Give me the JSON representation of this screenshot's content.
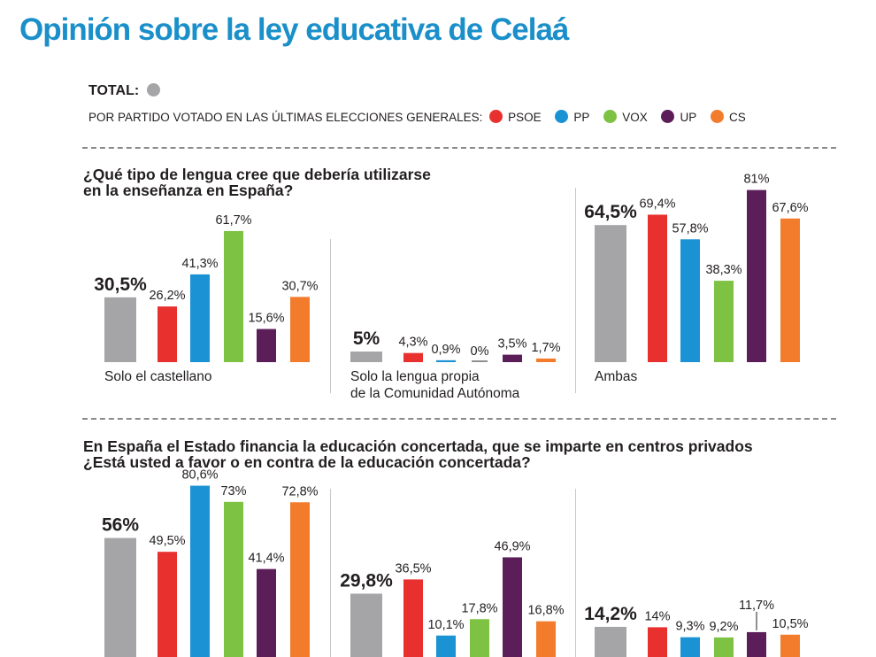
{
  "title": "Opinión sobre la ley educativa de Celaá",
  "legend": {
    "total_label": "TOTAL:",
    "party_intro": "POR PARTIDO VOTADO EN LAS ÚLTIMAS ELECCIONES GENERALES:",
    "parties": [
      "PSOE",
      "PP",
      "VOX",
      "UP",
      "CS"
    ]
  },
  "colors": {
    "TOTAL": "#a5a5a7",
    "PSOE": "#e8312f",
    "PP": "#1a92d4",
    "VOX": "#7dc242",
    "UP": "#5b1e59",
    "CS": "#f37b2c"
  },
  "questions": {
    "q1_line1": "¿Qué tipo de lengua cree que debería utilizarse",
    "q1_line2": "en la enseñanza en España?",
    "q2_line1": "En España el Estado financia la educación concertada, que se imparte en centros privados",
    "q2_line2": "¿Está usted a favor o en contra de la educación concertada?"
  },
  "chart_data": [
    {
      "type": "bar",
      "title": "¿Qué tipo de lengua cree que debería utilizarse en la enseñanza en España?",
      "series_names": [
        "TOTAL",
        "PSOE",
        "PP",
        "VOX",
        "UP",
        "CS"
      ],
      "groups": [
        {
          "label": [
            "Solo el castellano"
          ],
          "values": [
            30.5,
            26.2,
            41.3,
            61.7,
            15.6,
            30.7
          ],
          "labels": [
            "30,5%",
            "26,2%",
            "41,3%",
            "61,7%",
            "15,6%",
            "30,7%"
          ]
        },
        {
          "label": [
            "Solo la lengua propia",
            "de la Comunidad Autónoma"
          ],
          "values": [
            5,
            4.3,
            0.9,
            0,
            3.5,
            1.7
          ],
          "labels": [
            "5%",
            "4,3%",
            "0,9%",
            "0%",
            "3,5%",
            "1,7%"
          ]
        },
        {
          "label": [
            "Ambas"
          ],
          "values": [
            64.5,
            69.4,
            57.8,
            38.3,
            81,
            67.6
          ],
          "labels": [
            "64,5%",
            "69,4%",
            "57,8%",
            "38,3%",
            "81%",
            "67,6%"
          ]
        }
      ]
    },
    {
      "type": "bar",
      "title": "¿Está usted a favor o en contra de la educación concertada?",
      "series_names": [
        "TOTAL",
        "PSOE",
        "PP",
        "VOX",
        "UP",
        "CS"
      ],
      "groups": [
        {
          "label": [],
          "values": [
            56,
            49.5,
            80.6,
            73,
            41.4,
            72.8
          ],
          "labels": [
            "56%",
            "49,5%",
            "80,6%",
            "73%",
            "41,4%",
            "72,8%"
          ]
        },
        {
          "label": [],
          "values": [
            29.8,
            36.5,
            10.1,
            17.8,
            46.9,
            16.8
          ],
          "labels": [
            "29,8%",
            "36,5%",
            "10,1%",
            "17,8%",
            "46,9%",
            "16,8%"
          ]
        },
        {
          "label": [],
          "values": [
            14.2,
            14,
            9.3,
            9.2,
            11.7,
            10.5
          ],
          "labels": [
            "14,2%",
            "14%",
            "9,3%",
            "9,2%",
            "11,7%",
            "10,5%"
          ]
        }
      ]
    }
  ]
}
